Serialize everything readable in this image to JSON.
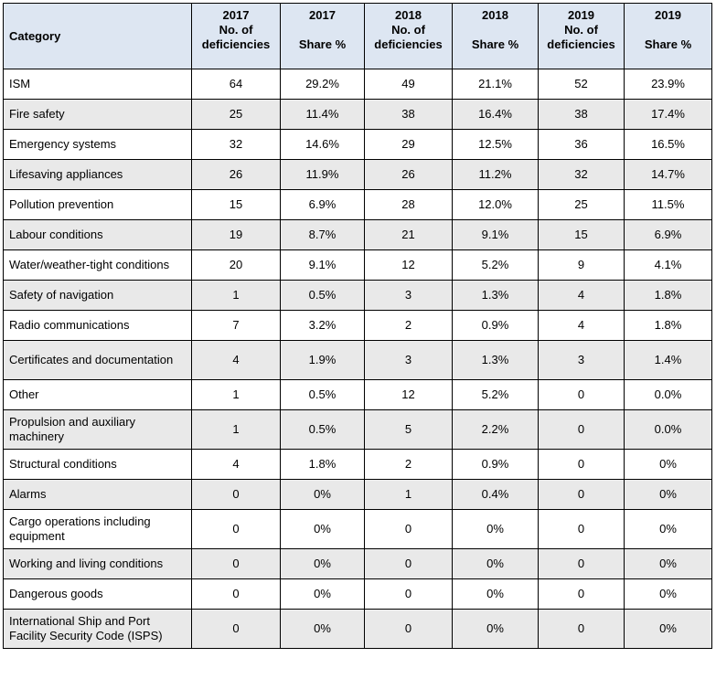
{
  "headers": [
    {
      "lines": [
        "Category"
      ]
    },
    {
      "lines": [
        "2017",
        "No. of",
        "deficiencies"
      ]
    },
    {
      "lines": [
        "2017",
        "",
        "Share %"
      ]
    },
    {
      "lines": [
        "2018",
        "No. of",
        "deficiencies"
      ]
    },
    {
      "lines": [
        "2018",
        "",
        "Share %"
      ]
    },
    {
      "lines": [
        "2019",
        "No. of",
        "deficiencies"
      ]
    },
    {
      "lines": [
        "2019",
        "",
        "Share %"
      ]
    }
  ],
  "rows": [
    {
      "cells": [
        "ISM",
        "64",
        "29.2%",
        "49",
        "21.1%",
        "52",
        "23.9%"
      ]
    },
    {
      "cells": [
        "Fire safety",
        "25",
        "11.4%",
        "38",
        "16.4%",
        "38",
        "17.4%"
      ]
    },
    {
      "cells": [
        "Emergency systems",
        "32",
        "14.6%",
        "29",
        "12.5%",
        "36",
        "16.5%"
      ]
    },
    {
      "cells": [
        "Lifesaving appliances",
        "26",
        "11.9%",
        "26",
        "11.2%",
        "32",
        "14.7%"
      ]
    },
    {
      "cells": [
        "Pollution prevention",
        "15",
        "6.9%",
        "28",
        "12.0%",
        "25",
        "11.5%"
      ]
    },
    {
      "cells": [
        "Labour conditions",
        "19",
        "8.7%",
        "21",
        "9.1%",
        "15",
        "6.9%"
      ]
    },
    {
      "cells": [
        "Water/weather-tight conditions",
        "20",
        "9.1%",
        "12",
        "5.2%",
        "9",
        "4.1%"
      ]
    },
    {
      "cells": [
        "Safety of navigation",
        "1",
        "0.5%",
        "3",
        "1.3%",
        "4",
        "1.8%"
      ]
    },
    {
      "cells": [
        "Radio communications",
        "7",
        "3.2%",
        "2",
        "0.9%",
        "4",
        "1.8%"
      ]
    },
    {
      "cells": [
        "Certificates and documentation",
        "4",
        "1.9%",
        "3",
        "1.3%",
        "3",
        "1.4%"
      ]
    },
    {
      "cells": [
        "Other",
        "1",
        "0.5%",
        "12",
        "5.2%",
        "0",
        "0.0%"
      ]
    },
    {
      "cells": [
        "Propulsion and auxiliary machinery",
        "1",
        "0.5%",
        "5",
        "2.2%",
        "0",
        "0.0%"
      ]
    },
    {
      "cells": [
        "Structural conditions",
        "4",
        "1.8%",
        "2",
        "0.9%",
        "0",
        "0%"
      ]
    },
    {
      "cells": [
        "Alarms",
        "0",
        "0%",
        "1",
        "0.4%",
        "0",
        "0%"
      ]
    },
    {
      "cells": [
        "Cargo operations including equipment",
        "0",
        "0%",
        "0",
        "0%",
        "0",
        "0%"
      ]
    },
    {
      "cells": [
        "Working and living conditions",
        "0",
        "0%",
        "0",
        "0%",
        "0",
        "0%"
      ]
    },
    {
      "cells": [
        "Dangerous goods",
        "0",
        "0%",
        "0",
        "0%",
        "0",
        "0%"
      ]
    },
    {
      "cells": [
        "International Ship and Port Facility Security Code (ISPS)",
        "0",
        "0%",
        "0",
        "0%",
        "0",
        "0%"
      ]
    }
  ]
}
